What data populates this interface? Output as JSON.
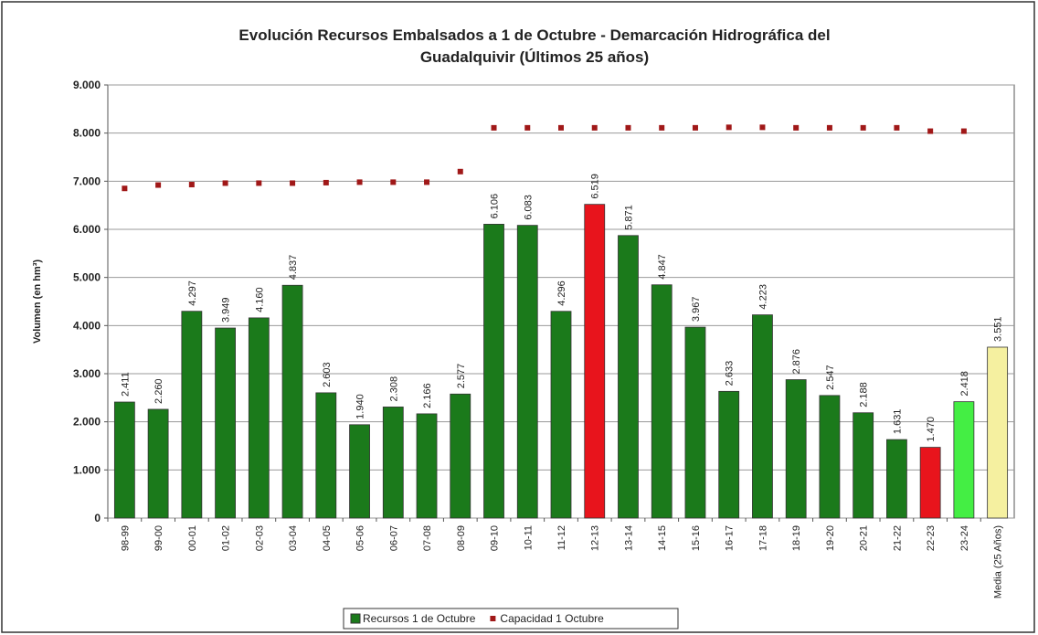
{
  "chart_data": {
    "type": "bar",
    "title": [
      "Evolución Recursos Embalsados a 1 de Octubre - Demarcación Hidrográfica del",
      "Guadalquivir (Últimos 25 años)"
    ],
    "y_label": "Volumen (en hm³)",
    "categories": [
      "98-99",
      "99-00",
      "00-01",
      "01-02",
      "02-03",
      "03-04",
      "04-05",
      "05-06",
      "06-07",
      "07-08",
      "08-09",
      "09-10",
      "10-11",
      "11-12",
      "12-13",
      "13-14",
      "14-15",
      "15-16",
      "16-17",
      "17-18",
      "18-19",
      "19-20",
      "20-21",
      "21-22",
      "22-23",
      "23-24",
      "Media (25 Años)"
    ],
    "series": [
      {
        "name": "Recursos 1 de Octubre",
        "type": "bar",
        "color": "#1b7a1b",
        "colors": [
          "#1b7a1b",
          "#1b7a1b",
          "#1b7a1b",
          "#1b7a1b",
          "#1b7a1b",
          "#1b7a1b",
          "#1b7a1b",
          "#1b7a1b",
          "#1b7a1b",
          "#1b7a1b",
          "#1b7a1b",
          "#1b7a1b",
          "#1b7a1b",
          "#1b7a1b",
          "#e8141c",
          "#1b7a1b",
          "#1b7a1b",
          "#1b7a1b",
          "#1b7a1b",
          "#1b7a1b",
          "#1b7a1b",
          "#1b7a1b",
          "#1b7a1b",
          "#1b7a1b",
          "#e8141c",
          "#44ee44",
          "#f5f0a0"
        ],
        "values": [
          2411,
          2260,
          4297,
          3949,
          4160,
          4837,
          2603,
          1940,
          2308,
          2166,
          2577,
          6106,
          6083,
          4296,
          6519,
          5871,
          4847,
          3967,
          2633,
          4223,
          2876,
          2547,
          2188,
          1631,
          1470,
          2418,
          3551
        ],
        "value_labels": [
          "2.411",
          "2.260",
          "4.297",
          "3.949",
          "4.160",
          "4.837",
          "2.603",
          "1.940",
          "2.308",
          "2.166",
          "2.577",
          "6.106",
          "6.083",
          "4.296",
          "6.519",
          "5.871",
          "4.847",
          "3.967",
          "2.633",
          "4.223",
          "2.876",
          "2.547",
          "2.188",
          "1.631",
          "1.470",
          "2.418",
          "3.551"
        ]
      },
      {
        "name": "Capacidad 1 Octubre",
        "type": "scatter",
        "color": "#a01818",
        "values": [
          6850,
          6920,
          6930,
          6960,
          6960,
          6960,
          6970,
          6980,
          6980,
          6980,
          7200,
          8110,
          8110,
          8110,
          8110,
          8110,
          8110,
          8110,
          8120,
          8120,
          8110,
          8110,
          8110,
          8110,
          8040,
          8040,
          null
        ]
      }
    ],
    "ylim": [
      0,
      9000
    ],
    "yticks": [
      {
        "value": 0,
        "label": "0"
      },
      {
        "value": 1000,
        "label": "1.000"
      },
      {
        "value": 2000,
        "label": "2.000"
      },
      {
        "value": 3000,
        "label": "3.000"
      },
      {
        "value": 4000,
        "label": "4.000"
      },
      {
        "value": 5000,
        "label": "5.000"
      },
      {
        "value": 6000,
        "label": "6.000"
      },
      {
        "value": 7000,
        "label": "7.000"
      },
      {
        "value": 8000,
        "label": "8.000"
      },
      {
        "value": 9000,
        "label": "9.000"
      }
    ],
    "grid": true,
    "legend": "bottom"
  }
}
